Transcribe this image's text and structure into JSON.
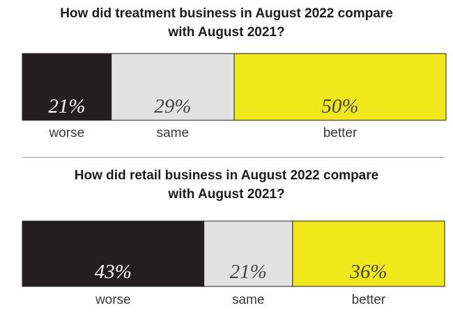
{
  "colors": {
    "worse": "#231f20",
    "same": "#e2e2e2",
    "better": "#f0e81a",
    "text_dark": "#1e1b1c"
  },
  "chart_data": [
    {
      "type": "bar",
      "orientation": "horizontal-stacked",
      "title_lines": [
        "How did treatment business in August 2022 compare",
        "with August 2021?"
      ],
      "categories": [
        "worse",
        "same",
        "better"
      ],
      "values": [
        21,
        29,
        50
      ],
      "value_labels": [
        "21%",
        "29%",
        "50%"
      ],
      "unit": "%",
      "total": 100
    },
    {
      "type": "bar",
      "orientation": "horizontal-stacked",
      "title_lines": [
        "How did retail business in August 2022 compare",
        "with August 2021?"
      ],
      "categories": [
        "worse",
        "same",
        "better"
      ],
      "values": [
        43,
        21,
        36
      ],
      "value_labels": [
        "43%",
        "21%",
        "36%"
      ],
      "unit": "%",
      "total": 100
    }
  ]
}
